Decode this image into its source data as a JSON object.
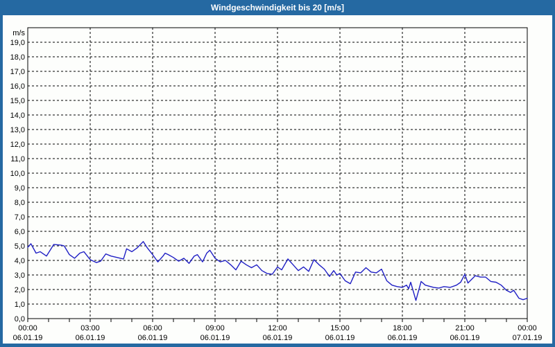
{
  "window": {
    "title": "Windgeschwindigkeit bis 20 [m/s]"
  },
  "colors": {
    "frame": "#2569A2",
    "titlebar": "#2569A2",
    "title_text": "#FFFFFF",
    "plot_background": "#FDFEFC",
    "grid": "#000000",
    "axis": "#000000",
    "line": "#1E1EC4",
    "tick_text": "#000000"
  },
  "chart_data": {
    "type": "line",
    "title": "Windgeschwindigkeit bis 20 [m/s]",
    "ylabel": "m/s",
    "ylim": [
      0,
      20
    ],
    "ytick_step": 1,
    "ytick_labels": [
      "0,0",
      "1,0",
      "2,0",
      "3,0",
      "4,0",
      "5,0",
      "6,0",
      "7,0",
      "8,0",
      "9,0",
      "10,0",
      "11,0",
      "12,0",
      "13,0",
      "14,0",
      "15,0",
      "16,0",
      "17,0",
      "18,0",
      "19,0"
    ],
    "xlim_hours": [
      0,
      24
    ],
    "x_major_step_hours": 3,
    "x_minor_step_hours": 1,
    "grid": "dashed",
    "legend": "none",
    "x_ticks": [
      {
        "hour": 0,
        "time": "00:00",
        "date": "06.01.19"
      },
      {
        "hour": 3,
        "time": "03:00",
        "date": "06.01.19"
      },
      {
        "hour": 6,
        "time": "06:00",
        "date": "06.01.19"
      },
      {
        "hour": 9,
        "time": "09:00",
        "date": "06.01.19"
      },
      {
        "hour": 12,
        "time": "12:00",
        "date": "06.01.19"
      },
      {
        "hour": 15,
        "time": "15:00",
        "date": "06.01.19"
      },
      {
        "hour": 18,
        "time": "18:00",
        "date": "06.01.19"
      },
      {
        "hour": 21,
        "time": "21:00",
        "date": "06.01.19"
      },
      {
        "hour": 24,
        "time": "00:00",
        "date": "07.01.19"
      }
    ],
    "series": [
      {
        "name": "Windgeschwindigkeit",
        "unit": "m/s",
        "color": "#1E1EC4",
        "points": [
          [
            0.0,
            4.9
          ],
          [
            0.15,
            5.15
          ],
          [
            0.4,
            4.5
          ],
          [
            0.6,
            4.6
          ],
          [
            0.9,
            4.3
          ],
          [
            1.25,
            5.1
          ],
          [
            1.6,
            5.05
          ],
          [
            1.75,
            5.0
          ],
          [
            2.0,
            4.4
          ],
          [
            2.25,
            4.15
          ],
          [
            2.5,
            4.5
          ],
          [
            2.7,
            4.6
          ],
          [
            3.0,
            4.05
          ],
          [
            3.3,
            3.85
          ],
          [
            3.5,
            3.95
          ],
          [
            3.75,
            4.45
          ],
          [
            4.0,
            4.3
          ],
          [
            4.3,
            4.2
          ],
          [
            4.6,
            4.1
          ],
          [
            4.75,
            4.8
          ],
          [
            5.0,
            4.6
          ],
          [
            5.25,
            4.85
          ],
          [
            5.55,
            5.3
          ],
          [
            5.75,
            4.85
          ],
          [
            6.0,
            4.4
          ],
          [
            6.25,
            3.9
          ],
          [
            6.5,
            4.3
          ],
          [
            6.6,
            4.5
          ],
          [
            6.75,
            4.4
          ],
          [
            7.0,
            4.2
          ],
          [
            7.25,
            3.95
          ],
          [
            7.5,
            4.15
          ],
          [
            7.75,
            3.8
          ],
          [
            8.0,
            4.3
          ],
          [
            8.15,
            4.4
          ],
          [
            8.4,
            3.9
          ],
          [
            8.6,
            4.5
          ],
          [
            8.75,
            4.7
          ],
          [
            9.0,
            4.15
          ],
          [
            9.25,
            3.9
          ],
          [
            9.5,
            4.0
          ],
          [
            9.75,
            3.7
          ],
          [
            10.0,
            3.35
          ],
          [
            10.25,
            3.95
          ],
          [
            10.5,
            3.7
          ],
          [
            10.75,
            3.5
          ],
          [
            11.0,
            3.7
          ],
          [
            11.25,
            3.3
          ],
          [
            11.5,
            3.1
          ],
          [
            11.75,
            3.05
          ],
          [
            12.0,
            3.55
          ],
          [
            12.2,
            3.35
          ],
          [
            12.5,
            4.1
          ],
          [
            12.75,
            3.7
          ],
          [
            13.0,
            3.3
          ],
          [
            13.25,
            3.55
          ],
          [
            13.5,
            3.25
          ],
          [
            13.75,
            4.05
          ],
          [
            14.0,
            3.7
          ],
          [
            14.25,
            3.4
          ],
          [
            14.5,
            2.9
          ],
          [
            14.7,
            3.3
          ],
          [
            14.85,
            3.0
          ],
          [
            15.0,
            3.1
          ],
          [
            15.25,
            2.6
          ],
          [
            15.5,
            2.4
          ],
          [
            15.75,
            3.2
          ],
          [
            16.0,
            3.15
          ],
          [
            16.25,
            3.5
          ],
          [
            16.5,
            3.2
          ],
          [
            16.75,
            3.15
          ],
          [
            17.0,
            3.4
          ],
          [
            17.25,
            2.6
          ],
          [
            17.5,
            2.3
          ],
          [
            17.75,
            2.2
          ],
          [
            18.0,
            2.15
          ],
          [
            18.2,
            2.3
          ],
          [
            18.3,
            2.05
          ],
          [
            18.4,
            2.5
          ],
          [
            18.65,
            1.25
          ],
          [
            18.9,
            2.55
          ],
          [
            19.1,
            2.3
          ],
          [
            19.5,
            2.15
          ],
          [
            19.75,
            2.1
          ],
          [
            20.0,
            2.2
          ],
          [
            20.3,
            2.15
          ],
          [
            20.6,
            2.3
          ],
          [
            20.8,
            2.5
          ],
          [
            21.0,
            3.05
          ],
          [
            21.15,
            2.45
          ],
          [
            21.5,
            2.95
          ],
          [
            21.75,
            2.85
          ],
          [
            22.0,
            2.85
          ],
          [
            22.25,
            2.55
          ],
          [
            22.5,
            2.5
          ],
          [
            22.75,
            2.3
          ],
          [
            23.0,
            1.95
          ],
          [
            23.2,
            1.8
          ],
          [
            23.35,
            1.95
          ],
          [
            23.6,
            1.4
          ],
          [
            23.8,
            1.3
          ],
          [
            24.0,
            1.4
          ]
        ]
      }
    ]
  }
}
